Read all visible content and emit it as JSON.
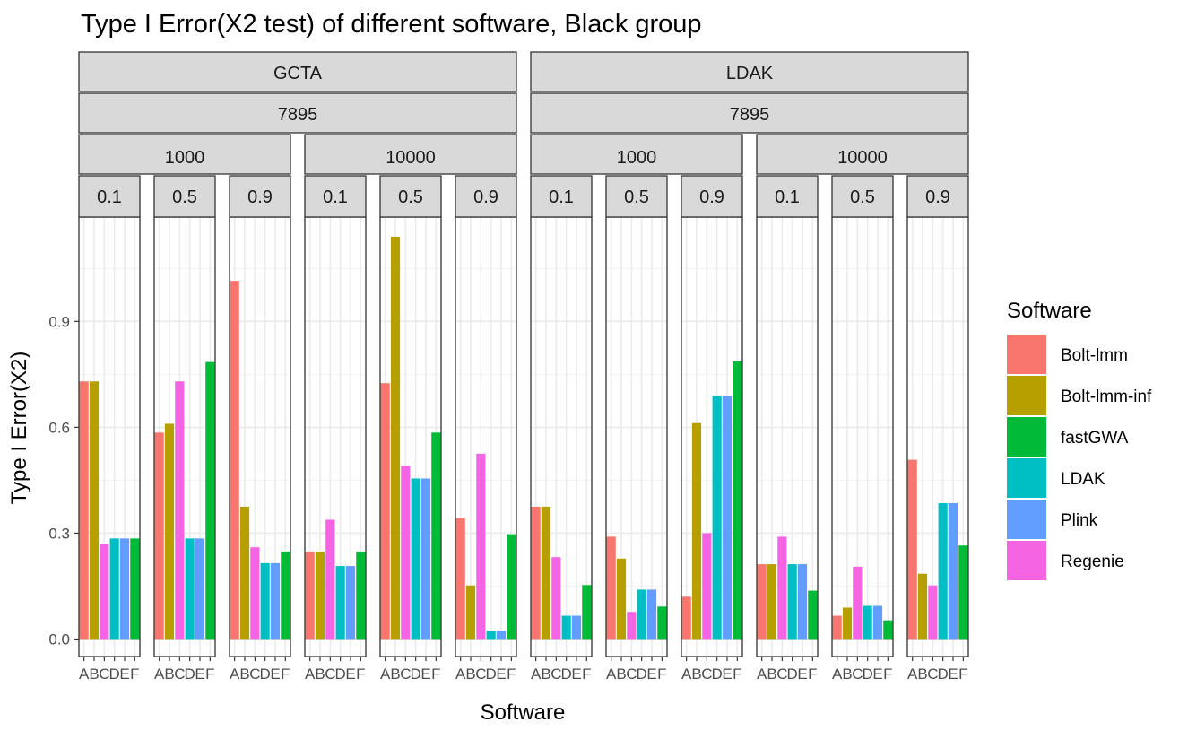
{
  "chart_data": {
    "type": "bar",
    "title": "Type I Error(X2 test) of different software, Black group",
    "xlabel": "Software",
    "ylabel": "Type I Error(X2)",
    "ylim": [
      0,
      1.2
    ],
    "y_ticks": [
      "0.0",
      "0.3",
      "0.6",
      "0.9"
    ],
    "y_tick_values": [
      0,
      0.3,
      0.6,
      0.9
    ],
    "categories": [
      "A",
      "B",
      "C",
      "D",
      "E",
      "F"
    ],
    "grid": true,
    "legend_position": "right",
    "legend": {
      "title": "Software",
      "entries": [
        {
          "label": "Bolt-lmm",
          "color": "#F8766D"
        },
        {
          "label": "Bolt-lmm-inf",
          "color": "#B79F00"
        },
        {
          "label": "fastGWA",
          "color": "#00BA38"
        },
        {
          "label": "LDAK",
          "color": "#00BFC4"
        },
        {
          "label": "Plink",
          "color": "#619CFF"
        },
        {
          "label": "Regenie",
          "color": "#F564E3"
        }
      ]
    },
    "facets": [
      {
        "name": "GCTA",
        "sub": "7895",
        "groups": [
          {
            "name": "1000",
            "panels": [
              {
                "name": "0.1",
                "bars": [
                  {
                    "x": "A",
                    "y": 0.73,
                    "s": "Bolt-lmm"
                  },
                  {
                    "x": "B",
                    "y": 0.73,
                    "s": "Bolt-lmm-inf"
                  },
                  {
                    "x": "C",
                    "y": 0.27,
                    "s": "Regenie"
                  },
                  {
                    "x": "D",
                    "y": 0.285,
                    "s": "LDAK"
                  },
                  {
                    "x": "E",
                    "y": 0.285,
                    "s": "Plink"
                  },
                  {
                    "x": "F",
                    "y": 0.285,
                    "s": "fastGWA"
                  }
                ]
              },
              {
                "name": "0.5",
                "bars": [
                  {
                    "x": "A",
                    "y": 0.585,
                    "s": "Bolt-lmm"
                  },
                  {
                    "x": "B",
                    "y": 0.61,
                    "s": "Bolt-lmm-inf"
                  },
                  {
                    "x": "C",
                    "y": 0.73,
                    "s": "Regenie"
                  },
                  {
                    "x": "D",
                    "y": 0.285,
                    "s": "LDAK"
                  },
                  {
                    "x": "E",
                    "y": 0.285,
                    "s": "Plink"
                  },
                  {
                    "x": "F",
                    "y": 0.785,
                    "s": "fastGWA"
                  }
                ]
              },
              {
                "name": "0.9",
                "bars": [
                  {
                    "x": "A",
                    "y": 1.015,
                    "s": "Bolt-lmm"
                  },
                  {
                    "x": "B",
                    "y": 0.375,
                    "s": "Bolt-lmm-inf"
                  },
                  {
                    "x": "C",
                    "y": 0.26,
                    "s": "Regenie"
                  },
                  {
                    "x": "D",
                    "y": 0.215,
                    "s": "LDAK"
                  },
                  {
                    "x": "E",
                    "y": 0.215,
                    "s": "Plink"
                  },
                  {
                    "x": "F",
                    "y": 0.248,
                    "s": "fastGWA"
                  }
                ]
              }
            ]
          },
          {
            "name": "10000",
            "panels": [
              {
                "name": "0.1",
                "bars": [
                  {
                    "x": "A",
                    "y": 0.248,
                    "s": "Bolt-lmm"
                  },
                  {
                    "x": "B",
                    "y": 0.248,
                    "s": "Bolt-lmm-inf"
                  },
                  {
                    "x": "C",
                    "y": 0.338,
                    "s": "Regenie"
                  },
                  {
                    "x": "D",
                    "y": 0.207,
                    "s": "LDAK"
                  },
                  {
                    "x": "E",
                    "y": 0.207,
                    "s": "Plink"
                  },
                  {
                    "x": "F",
                    "y": 0.248,
                    "s": "fastGWA"
                  }
                ]
              },
              {
                "name": "0.5",
                "bars": [
                  {
                    "x": "A",
                    "y": 0.725,
                    "s": "Bolt-lmm"
                  },
                  {
                    "x": "B",
                    "y": 1.14,
                    "s": "Bolt-lmm-inf"
                  },
                  {
                    "x": "C",
                    "y": 0.49,
                    "s": "Regenie"
                  },
                  {
                    "x": "D",
                    "y": 0.455,
                    "s": "LDAK"
                  },
                  {
                    "x": "E",
                    "y": 0.455,
                    "s": "Plink"
                  },
                  {
                    "x": "F",
                    "y": 0.585,
                    "s": "fastGWA"
                  }
                ]
              },
              {
                "name": "0.9",
                "bars": [
                  {
                    "x": "A",
                    "y": 0.343,
                    "s": "Bolt-lmm"
                  },
                  {
                    "x": "B",
                    "y": 0.152,
                    "s": "Bolt-lmm-inf"
                  },
                  {
                    "x": "C",
                    "y": 0.525,
                    "s": "Regenie"
                  },
                  {
                    "x": "D",
                    "y": 0.023,
                    "s": "LDAK"
                  },
                  {
                    "x": "E",
                    "y": 0.023,
                    "s": "Plink"
                  },
                  {
                    "x": "F",
                    "y": 0.297,
                    "s": "fastGWA"
                  }
                ]
              }
            ]
          }
        ]
      },
      {
        "name": "LDAK",
        "sub": "7895",
        "groups": [
          {
            "name": "1000",
            "panels": [
              {
                "name": "0.1",
                "bars": [
                  {
                    "x": "A",
                    "y": 0.375,
                    "s": "Bolt-lmm"
                  },
                  {
                    "x": "B",
                    "y": 0.375,
                    "s": "Bolt-lmm-inf"
                  },
                  {
                    "x": "C",
                    "y": 0.232,
                    "s": "Regenie"
                  },
                  {
                    "x": "D",
                    "y": 0.066,
                    "s": "LDAK"
                  },
                  {
                    "x": "E",
                    "y": 0.066,
                    "s": "Plink"
                  },
                  {
                    "x": "F",
                    "y": 0.153,
                    "s": "fastGWA"
                  }
                ]
              },
              {
                "name": "0.5",
                "bars": [
                  {
                    "x": "A",
                    "y": 0.29,
                    "s": "Bolt-lmm"
                  },
                  {
                    "x": "B",
                    "y": 0.228,
                    "s": "Bolt-lmm-inf"
                  },
                  {
                    "x": "C",
                    "y": 0.077,
                    "s": "Regenie"
                  },
                  {
                    "x": "D",
                    "y": 0.14,
                    "s": "LDAK"
                  },
                  {
                    "x": "E",
                    "y": 0.14,
                    "s": "Plink"
                  },
                  {
                    "x": "F",
                    "y": 0.092,
                    "s": "fastGWA"
                  }
                ]
              },
              {
                "name": "0.9",
                "bars": [
                  {
                    "x": "A",
                    "y": 0.12,
                    "s": "Bolt-lmm"
                  },
                  {
                    "x": "B",
                    "y": 0.612,
                    "s": "Bolt-lmm-inf"
                  },
                  {
                    "x": "C",
                    "y": 0.3,
                    "s": "Regenie"
                  },
                  {
                    "x": "D",
                    "y": 0.69,
                    "s": "LDAK"
                  },
                  {
                    "x": "E",
                    "y": 0.69,
                    "s": "Plink"
                  },
                  {
                    "x": "F",
                    "y": 0.787,
                    "s": "fastGWA"
                  }
                ]
              }
            ]
          },
          {
            "name": "10000",
            "panels": [
              {
                "name": "0.1",
                "bars": [
                  {
                    "x": "A",
                    "y": 0.212,
                    "s": "Bolt-lmm"
                  },
                  {
                    "x": "B",
                    "y": 0.212,
                    "s": "Bolt-lmm-inf"
                  },
                  {
                    "x": "C",
                    "y": 0.29,
                    "s": "Regenie"
                  },
                  {
                    "x": "D",
                    "y": 0.212,
                    "s": "LDAK"
                  },
                  {
                    "x": "E",
                    "y": 0.212,
                    "s": "Plink"
                  },
                  {
                    "x": "F",
                    "y": 0.137,
                    "s": "fastGWA"
                  }
                ]
              },
              {
                "name": "0.5",
                "bars": [
                  {
                    "x": "A",
                    "y": 0.066,
                    "s": "Bolt-lmm"
                  },
                  {
                    "x": "B",
                    "y": 0.089,
                    "s": "Bolt-lmm-inf"
                  },
                  {
                    "x": "C",
                    "y": 0.205,
                    "s": "Regenie"
                  },
                  {
                    "x": "D",
                    "y": 0.094,
                    "s": "LDAK"
                  },
                  {
                    "x": "E",
                    "y": 0.094,
                    "s": "Plink"
                  },
                  {
                    "x": "F",
                    "y": 0.053,
                    "s": "fastGWA"
                  }
                ]
              },
              {
                "name": "0.9",
                "bars": [
                  {
                    "x": "A",
                    "y": 0.508,
                    "s": "Bolt-lmm"
                  },
                  {
                    "x": "B",
                    "y": 0.185,
                    "s": "Bolt-lmm-inf"
                  },
                  {
                    "x": "C",
                    "y": 0.152,
                    "s": "Regenie"
                  },
                  {
                    "x": "D",
                    "y": 0.385,
                    "s": "LDAK"
                  },
                  {
                    "x": "E",
                    "y": 0.385,
                    "s": "Plink"
                  },
                  {
                    "x": "F",
                    "y": 0.265,
                    "s": "fastGWA"
                  }
                ]
              }
            ]
          }
        ]
      }
    ]
  }
}
